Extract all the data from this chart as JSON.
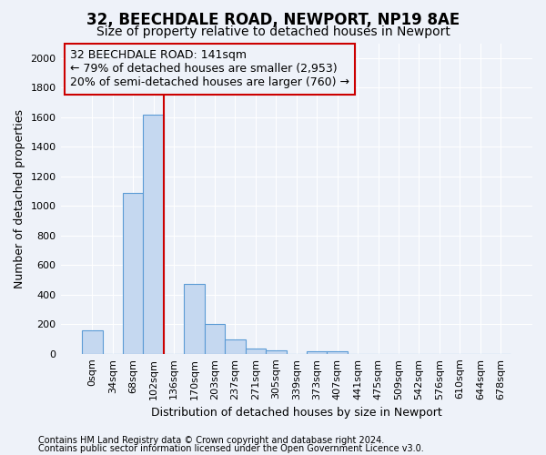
{
  "title": "32, BEECHDALE ROAD, NEWPORT, NP19 8AE",
  "subtitle": "Size of property relative to detached houses in Newport",
  "xlabel": "Distribution of detached houses by size in Newport",
  "ylabel": "Number of detached properties",
  "footnote1": "Contains HM Land Registry data © Crown copyright and database right 2024.",
  "footnote2": "Contains public sector information licensed under the Open Government Licence v3.0.",
  "annotation_line1": "32 BEECHDALE ROAD: 141sqm",
  "annotation_line2": "← 79% of detached houses are smaller (2,953)",
  "annotation_line3": "20% of semi-detached houses are larger (760) →",
  "bar_color": "#c5d8f0",
  "bar_edge_color": "#5b9bd5",
  "vline_color": "#cc0000",
  "categories": [
    "0sqm",
    "34sqm",
    "68sqm",
    "102sqm",
    "136sqm",
    "170sqm",
    "203sqm",
    "237sqm",
    "271sqm",
    "305sqm",
    "339sqm",
    "373sqm",
    "407sqm",
    "441sqm",
    "475sqm",
    "509sqm",
    "542sqm",
    "576sqm",
    "610sqm",
    "644sqm",
    "678sqm"
  ],
  "values": [
    160,
    0,
    1090,
    1620,
    0,
    470,
    200,
    100,
    35,
    25,
    0,
    15,
    15,
    0,
    0,
    0,
    0,
    0,
    0,
    0,
    0
  ],
  "ylim": [
    0,
    2100
  ],
  "yticks": [
    0,
    200,
    400,
    600,
    800,
    1000,
    1200,
    1400,
    1600,
    1800,
    2000
  ],
  "bg_color": "#eef2f9",
  "grid_color": "#ffffff",
  "title_fontsize": 12,
  "subtitle_fontsize": 10,
  "tick_fontsize": 8,
  "ylabel_fontsize": 9,
  "xlabel_fontsize": 9,
  "annotation_fontsize": 9,
  "footnote_fontsize": 7
}
